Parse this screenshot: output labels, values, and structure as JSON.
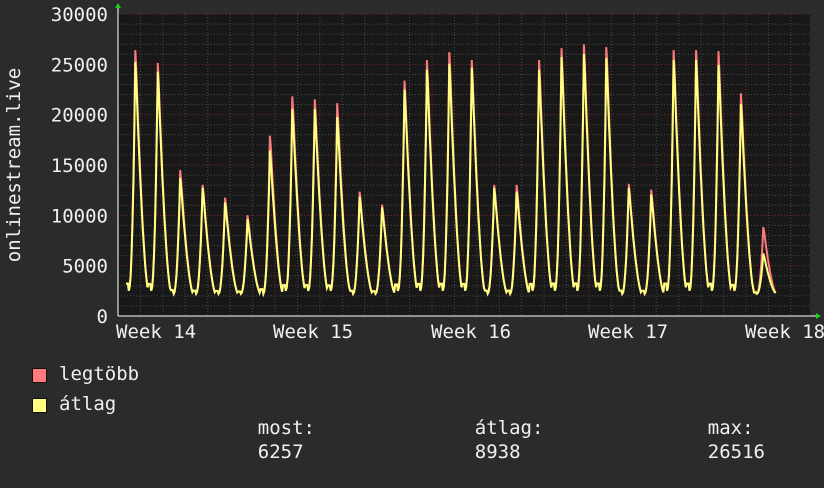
{
  "chart_data": {
    "type": "area",
    "ylabel": "onlinestream.live",
    "ylim": [
      0,
      30000
    ],
    "yticks": [
      0,
      5000,
      10000,
      15000,
      20000,
      25000,
      30000
    ],
    "xticks": [
      "Week 14",
      "Week 15",
      "Week 16",
      "Week 17",
      "Week 18"
    ],
    "grid": true,
    "legend_placement": "bottom-left",
    "series": [
      {
        "name": "legtöbb",
        "color": "#ff7b7b",
        "daily_peaks": [
          27000,
          25700,
          14800,
          13300,
          12000,
          10200,
          18300,
          22300,
          22000,
          21600,
          12600,
          11300,
          23900,
          26000,
          26800,
          26000,
          13300,
          13300,
          26000,
          27200,
          27600,
          27300,
          13400,
          12800,
          27000,
          27000,
          26900,
          22600,
          9000
        ]
      },
      {
        "name": "átlag",
        "color": "#ffff80",
        "daily_peaks": [
          25800,
          24800,
          14000,
          13000,
          11500,
          9800,
          16800,
          21000,
          21000,
          20200,
          12100,
          11000,
          23000,
          25000,
          25600,
          25200,
          13000,
          12600,
          25000,
          26300,
          26600,
          26200,
          13000,
          12300,
          26000,
          26000,
          25500,
          21500,
          6300
        ]
      }
    ],
    "stats": {
      "most_label": "most:",
      "most_value": "6257",
      "atlag_label": "átlag:",
      "atlag_value": "8938",
      "max_label": "max:",
      "max_value": "26516"
    }
  },
  "colors": {
    "background": "#2b2b2b",
    "plot_background": "#181818",
    "grid": "#4a4a4a",
    "grid_major": "#7a2a2a",
    "axis_arrow": "#22cc22"
  }
}
